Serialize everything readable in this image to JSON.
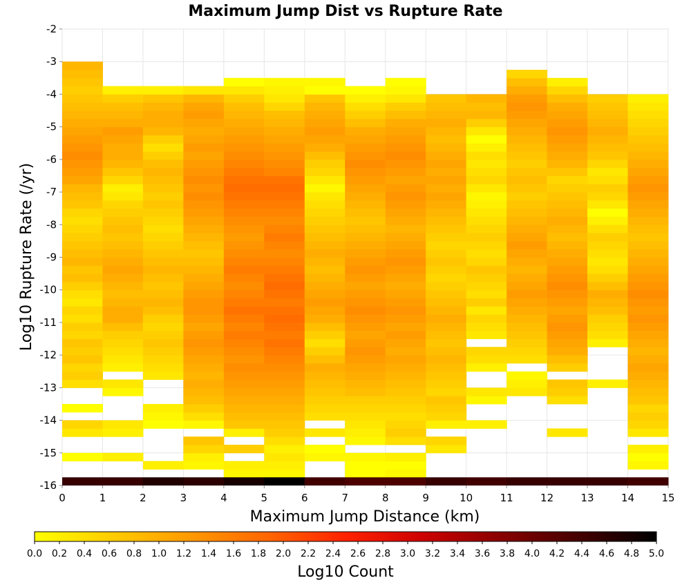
{
  "chart_data": {
    "type": "heatmap",
    "title": "Maximum Jump Dist vs Rupture Rate",
    "xlabel": "Maximum Jump Distance (km)",
    "ylabel": "Log10 Rupture Rate (/yr)",
    "xlim": [
      0,
      15
    ],
    "ylim": [
      -16,
      -2
    ],
    "x_ticks": [
      "0",
      "1",
      "2",
      "3",
      "4",
      "5",
      "6",
      "7",
      "8",
      "9",
      "10",
      "11",
      "12",
      "13",
      "14",
      "15"
    ],
    "y_ticks": [
      "-2",
      "-3",
      "-4",
      "-5",
      "-6",
      "-7",
      "-8",
      "-9",
      "-10",
      "-11",
      "-12",
      "-13",
      "-14",
      "-15",
      "-16"
    ],
    "x_bin_width": 1,
    "y_bin_width": 0.25,
    "grid": true,
    "colorbar": {
      "label": "Log10 Count",
      "range": [
        0,
        5
      ],
      "ticks": [
        "0.0",
        "0.2",
        "0.4",
        "0.6",
        "0.8",
        "1.0",
        "1.2",
        "1.4",
        "1.6",
        "1.8",
        "2.0",
        "2.2",
        "2.4",
        "2.6",
        "2.8",
        "3.0",
        "3.2",
        "3.4",
        "3.6",
        "3.8",
        "4.0",
        "4.2",
        "4.4",
        "4.6",
        "4.8",
        "5.0"
      ],
      "colors": [
        "#ffff00",
        "#ffcc00",
        "#ff9900",
        "#ff6600",
        "#ff2200",
        "#cc0000",
        "#880000",
        "#440000",
        "#000000"
      ]
    },
    "bottom_row": {
      "y": -15.875,
      "values": [
        4.5,
        4.5,
        4.7,
        4.6,
        4.8,
        5.0,
        4.4,
        4.3,
        4.3,
        4.5,
        4.4,
        4.5,
        4.5,
        4.5,
        4.4
      ]
    },
    "columns": [
      {
        "x": 0.5,
        "segments": [
          {
            "y0": -15.25,
            "y1": -14.75,
            "values": [
              0.0
            ]
          },
          {
            "y0": -14.5,
            "y1": -14.0,
            "values": [
              0.3,
              0.5
            ]
          },
          {
            "y0": -13.75,
            "y1": -13.5,
            "values": [
              0.0
            ]
          },
          {
            "y0": -13.0,
            "y1": -3.0,
            "values": [
              0.4,
              0.6,
              0.5,
              0.7,
              0.6,
              0.7,
              0.5,
              0.6,
              0.4,
              0.5,
              0.3,
              0.4,
              0.6,
              0.8,
              0.7,
              0.9,
              0.8,
              0.7,
              0.6,
              0.5,
              0.4,
              0.5,
              0.7,
              0.8,
              0.9,
              1.1,
              1.2,
              1.3,
              1.4,
              1.3,
              1.2,
              1.1,
              1.0,
              0.9,
              0.8,
              0.7,
              0.6,
              0.7,
              0.8,
              0.9
            ]
          }
        ]
      },
      {
        "x": 1.5,
        "segments": [
          {
            "y0": -15.25,
            "y1": -15.0,
            "values": [
              0.2
            ]
          },
          {
            "y0": -14.5,
            "y1": -14.0,
            "values": [
              0.2,
              0.3
            ]
          },
          {
            "y0": -13.25,
            "y1": -12.75,
            "values": [
              0.1,
              0.3
            ]
          },
          {
            "y0": -12.5,
            "y1": -3.75,
            "values": [
              0.2,
              0.3,
              0.4,
              0.5,
              0.6,
              0.8,
              1.0,
              1.0,
              0.9,
              0.8,
              0.9,
              1.0,
              1.1,
              1.0,
              0.9,
              0.8,
              0.7,
              0.8,
              0.7,
              0.6,
              0.5,
              0.3,
              0.2,
              0.5,
              0.7,
              0.9,
              1.0,
              1.0,
              1.1,
              1.2,
              1.0,
              0.9,
              0.8,
              0.6,
              0.2
            ]
          }
        ]
      },
      {
        "x": 2.5,
        "segments": [
          {
            "y0": -15.5,
            "y1": -15.25,
            "values": [
              0.2
            ]
          },
          {
            "y0": -14.25,
            "y1": -13.5,
            "values": [
              0.0,
              0.1,
              0.2
            ]
          },
          {
            "y0": -12.75,
            "y1": -3.75,
            "values": [
              0.3,
              0.4,
              0.5,
              0.6,
              0.7,
              0.6,
              0.5,
              0.6,
              0.8,
              0.9,
              0.8,
              0.7,
              0.8,
              0.9,
              0.8,
              0.7,
              0.6,
              0.5,
              0.4,
              0.5,
              0.6,
              0.7,
              0.6,
              0.7,
              0.8,
              0.9,
              0.8,
              0.6,
              0.4,
              0.6,
              0.9,
              1.0,
              1.0,
              0.9,
              0.7,
              0.2
            ]
          }
        ]
      },
      {
        "x": 3.5,
        "segments": [
          {
            "y0": -15.5,
            "y1": -14.5,
            "values": [
              0.1,
              0.2,
              0.5,
              0.7
            ]
          },
          {
            "y0": -14.25,
            "y1": -3.75,
            "values": [
              0.1,
              0.4,
              0.6,
              0.8,
              0.9,
              1.0,
              0.9,
              1.0,
              1.1,
              1.2,
              1.3,
              1.2,
              1.1,
              1.2,
              1.3,
              1.3,
              1.2,
              1.1,
              1.0,
              0.9,
              0.8,
              0.7,
              0.8,
              0.9,
              1.0,
              1.1,
              1.2,
              1.3,
              1.4,
              1.3,
              1.4,
              1.3,
              1.2,
              1.1,
              1.2,
              1.1,
              1.0,
              1.1,
              1.2,
              1.1,
              0.9,
              0.3
            ]
          }
        ]
      },
      {
        "x": 4.5,
        "segments": [
          {
            "y0": -15.75,
            "y1": -15.25,
            "values": [
              0.1,
              0.2
            ]
          },
          {
            "y0": -15.0,
            "y1": -14.75,
            "values": [
              0.6
            ]
          },
          {
            "y0": -14.5,
            "y1": -3.5,
            "values": [
              0.2,
              0.7,
              0.8,
              0.9,
              1.0,
              1.1,
              1.2,
              1.3,
              1.4,
              1.3,
              1.4,
              1.5,
              1.6,
              1.5,
              1.6,
              1.7,
              1.6,
              1.5,
              1.4,
              1.5,
              1.6,
              1.5,
              1.4,
              1.3,
              1.2,
              1.3,
              1.4,
              1.5,
              1.6,
              1.7,
              1.8,
              1.7,
              1.6,
              1.5,
              1.4,
              1.3,
              1.2,
              1.1,
              1.0,
              0.9,
              0.8,
              0.6,
              0.3,
              0.0
            ]
          }
        ]
      },
      {
        "x": 5.5,
        "segments": [
          {
            "y0": -15.75,
            "y1": -3.5,
            "values": [
              0.1,
              0.2,
              0.3,
              0.2,
              0.4,
              0.6,
              0.7,
              0.8,
              0.9,
              1.0,
              1.1,
              1.2,
              1.3,
              1.4,
              1.5,
              1.6,
              1.7,
              1.6,
              1.7,
              1.8,
              1.7,
              1.6,
              1.7,
              1.8,
              1.7,
              1.6,
              1.5,
              1.4,
              1.5,
              1.6,
              1.5,
              1.4,
              1.5,
              1.6,
              1.7,
              1.8,
              1.7,
              1.5,
              1.4,
              1.3,
              1.2,
              1.1,
              1.0,
              0.9,
              0.8,
              0.5,
              0.3,
              0.2,
              0.1
            ]
          }
        ]
      },
      {
        "x": 6.5,
        "segments": [
          {
            "y0": -15.25,
            "y1": -14.75,
            "values": [
              0.1,
              0.0
            ]
          },
          {
            "y0": -14.5,
            "y1": -14.25,
            "values": [
              0.3
            ]
          },
          {
            "y0": -14.0,
            "y1": -3.5,
            "values": [
              0.4,
              0.5,
              0.6,
              0.7,
              0.8,
              0.9,
              1.0,
              0.8,
              0.6,
              0.4,
              0.6,
              0.8,
              1.0,
              1.1,
              1.2,
              1.1,
              1.0,
              0.9,
              0.8,
              0.9,
              1.0,
              0.9,
              0.8,
              0.7,
              0.6,
              0.5,
              0.4,
              0.3,
              0.1,
              0.3,
              0.5,
              0.6,
              0.8,
              1.0,
              1.1,
              1.2,
              1.1,
              1.0,
              0.9,
              0.7,
              0.0,
              0.1
            ]
          }
        ]
      },
      {
        "x": 7.5,
        "segments": [
          {
            "y0": -15.75,
            "y1": -15.0,
            "values": [
              0.0,
              0.0,
              0.1
            ]
          },
          {
            "y0": -14.75,
            "y1": -3.75,
            "values": [
              0.1,
              0.2,
              0.3,
              0.4,
              0.5,
              0.6,
              0.8,
              0.9,
              1.0,
              1.1,
              1.2,
              1.3,
              1.2,
              1.1,
              1.2,
              1.3,
              1.4,
              1.3,
              1.2,
              1.1,
              1.2,
              1.3,
              1.2,
              1.1,
              1.0,
              0.9,
              0.8,
              0.7,
              0.8,
              0.9,
              1.0,
              1.1,
              1.2,
              1.3,
              1.4,
              1.3,
              1.2,
              1.1,
              1.0,
              0.8,
              0.6,
              0.4,
              0.2,
              0.0
            ]
          }
        ]
      },
      {
        "x": 8.5,
        "segments": [
          {
            "y0": -15.75,
            "y1": -15.0,
            "values": [
              0.1,
              0.0,
              0.2
            ]
          },
          {
            "y0": -14.75,
            "y1": -3.5,
            "values": [
              0.4,
              0.6,
              0.5,
              0.4,
              0.5,
              0.6,
              0.7,
              0.8,
              0.9,
              1.0,
              1.1,
              1.0,
              1.1,
              1.2,
              1.1,
              1.2,
              1.3,
              1.2,
              1.1,
              1.0,
              1.1,
              1.2,
              1.3,
              1.2,
              1.1,
              1.0,
              0.9,
              1.0,
              1.1,
              1.2,
              1.3,
              1.2,
              1.1,
              1.2,
              1.3,
              1.4,
              1.3,
              1.2,
              1.1,
              1.0,
              0.8,
              0.6,
              0.3,
              0.1,
              0.0
            ]
          }
        ]
      },
      {
        "x": 9.5,
        "segments": [
          {
            "y0": -15.0,
            "y1": -14.5,
            "values": [
              0.3,
              0.5
            ]
          },
          {
            "y0": -14.25,
            "y1": -4.0,
            "values": [
              0.2,
              0.5,
              0.6,
              0.7,
              0.5,
              0.6,
              0.7,
              0.8,
              0.9,
              0.8,
              0.7,
              0.8,
              0.9,
              1.0,
              0.9,
              0.8,
              0.7,
              0.6,
              0.5,
              0.6,
              0.7,
              0.6,
              0.5,
              0.6,
              0.7,
              0.8,
              0.9,
              1.0,
              1.1,
              1.0,
              1.1,
              1.0,
              1.1,
              1.0,
              0.9,
              0.8,
              0.9,
              1.0,
              0.9,
              0.8,
              0.7
            ]
          }
        ]
      },
      {
        "x": 10.5,
        "segments": [
          {
            "y0": -14.25,
            "y1": -14.0,
            "values": [
              0.2
            ]
          },
          {
            "y0": -13.5,
            "y1": -13.0,
            "values": [
              0.1,
              0.3
            ]
          },
          {
            "y0": -12.5,
            "y1": -11.75,
            "values": [
              0.2,
              0.4,
              0.5
            ]
          },
          {
            "y0": -11.5,
            "y1": -4.0,
            "values": [
              0.3,
              0.4,
              0.5,
              0.3,
              0.6,
              0.4,
              0.5,
              0.6,
              0.7,
              0.5,
              0.4,
              0.5,
              0.6,
              0.5,
              0.4,
              0.3,
              0.2,
              0.1,
              0.3,
              0.5,
              0.4,
              0.3,
              0.4,
              0.2,
              0.0,
              0.3,
              0.6,
              0.9,
              0.8,
              0.9
            ]
          }
        ]
      },
      {
        "x": 11.5,
        "segments": [
          {
            "y0": -13.25,
            "y1": -12.5,
            "values": [
              0.3,
              0.2,
              0.1
            ]
          },
          {
            "y0": -12.25,
            "y1": -3.5,
            "values": [
              0.4,
              0.5,
              0.6,
              0.7,
              0.8,
              0.9,
              1.0,
              1.1,
              1.2,
              1.1,
              1.0,
              0.9,
              1.0,
              1.1,
              1.2,
              1.1,
              1.0,
              0.9,
              0.8,
              0.7,
              0.6,
              0.7,
              0.8,
              0.7,
              0.6,
              0.7,
              0.8,
              0.9,
              1.0,
              1.1,
              1.2,
              1.3,
              1.2,
              1.0,
              0.8,
              0.5
            ]
          }
        ]
      },
      {
        "x": 12.5,
        "segments": [
          {
            "y0": -14.5,
            "y1": -14.25,
            "values": [
              0.3
            ]
          },
          {
            "y0": -13.5,
            "y1": -12.75,
            "values": [
              0.4,
              0.6,
              0.7
            ]
          },
          {
            "y0": -12.5,
            "y1": -3.5,
            "values": [
              0.6,
              0.8,
              1.0,
              1.1,
              1.2,
              1.3,
              1.2,
              1.1,
              1.2,
              1.3,
              1.4,
              1.3,
              1.2,
              1.1,
              1.0,
              0.9,
              0.8,
              0.9,
              1.0,
              0.9,
              0.8,
              0.7,
              0.6,
              0.5,
              0.7,
              0.9,
              1.0,
              1.1,
              1.2,
              1.3,
              1.2,
              1.1,
              1.0,
              0.8,
              0.5,
              0.2
            ]
          }
        ]
      },
      {
        "x": 13.5,
        "segments": [
          {
            "y0": -13.0,
            "y1": -12.75,
            "values": [
              0.2
            ]
          },
          {
            "y0": -11.75,
            "y1": -4.0,
            "values": [
              0.2,
              0.4,
              0.5,
              0.6,
              0.8,
              0.9,
              1.0,
              0.8,
              0.6,
              0.4,
              0.3,
              0.4,
              0.5,
              0.6,
              0.4,
              0.2,
              0.0,
              0.3,
              0.5,
              0.6,
              0.4,
              0.3,
              0.5,
              0.7,
              0.8,
              0.9,
              1.0,
              0.9,
              0.8,
              0.7,
              0.6
            ]
          }
        ]
      },
      {
        "x": 14.5,
        "segments": [
          {
            "y0": -15.5,
            "y1": -14.75,
            "values": [
              0.1,
              0.0,
              0.2
            ]
          },
          {
            "y0": -14.5,
            "y1": -4.0,
            "values": [
              0.3,
              0.5,
              0.6,
              0.5,
              0.7,
              0.8,
              0.9,
              1.0,
              1.1,
              1.0,
              0.9,
              1.0,
              1.1,
              1.2,
              1.3,
              1.2,
              1.3,
              1.4,
              1.3,
              1.2,
              1.1,
              1.0,
              0.9,
              0.8,
              0.7,
              0.8,
              0.9,
              1.0,
              1.1,
              1.2,
              1.3,
              1.2,
              1.1,
              1.0,
              0.9,
              0.8,
              0.7,
              0.6,
              0.5,
              0.4,
              0.3,
              0.2
            ]
          }
        ]
      }
    ]
  }
}
